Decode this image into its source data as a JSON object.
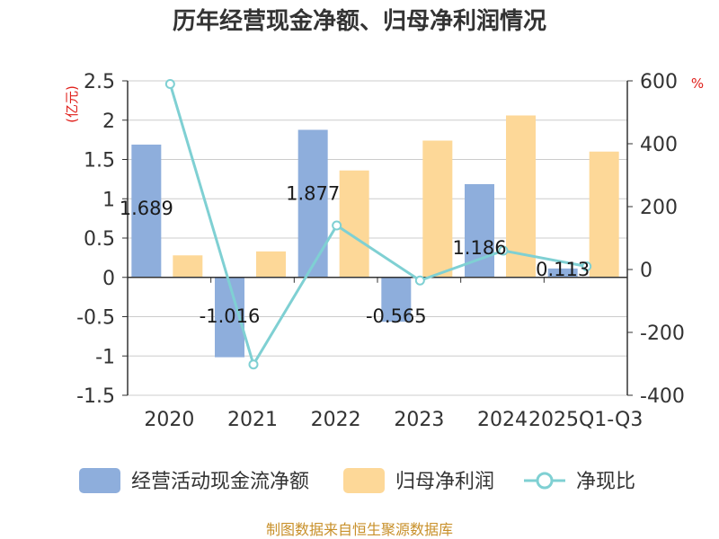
{
  "chart_data": {
    "type": "bar",
    "title": "历年经营现金净额、归母净利润情况",
    "categories": [
      "2020",
      "2021",
      "2022",
      "2023",
      "2024",
      "2025Q1-Q3"
    ],
    "series": [
      {
        "name": "经营活动现金流净额",
        "type": "bar",
        "axis": "left",
        "color": "#8eaedc",
        "values": [
          1.689,
          -1.016,
          1.877,
          -0.565,
          1.186,
          0.113
        ],
        "labels": [
          "1.689",
          "-1.016",
          "1.877",
          "-0.565",
          "1.186",
          "0.113"
        ]
      },
      {
        "name": "归母净利润",
        "type": "bar",
        "axis": "left",
        "color": "#fdd898",
        "values": [
          0.28,
          0.33,
          1.36,
          1.74,
          2.06,
          1.6
        ]
      },
      {
        "name": "净现比",
        "type": "line",
        "axis": "right",
        "color": "#7fd0d3",
        "values": [
          590,
          -302,
          140,
          -35,
          60,
          10
        ]
      }
    ],
    "y_left": {
      "unit": "(亿元)",
      "ylim": [
        -1.5,
        2.5
      ],
      "ticks": [
        "2.5",
        "2",
        "1.5",
        "1",
        "0.5",
        "0",
        "-0.5",
        "-1",
        "-1.5"
      ]
    },
    "y_right": {
      "unit": "%",
      "ylim": [
        -400,
        600
      ],
      "ticks": [
        "600",
        "400",
        "200",
        "0",
        "-200",
        "-400"
      ]
    },
    "grid": true,
    "legend": "bottom"
  },
  "source": "制图数据来自恒生聚源数据库"
}
